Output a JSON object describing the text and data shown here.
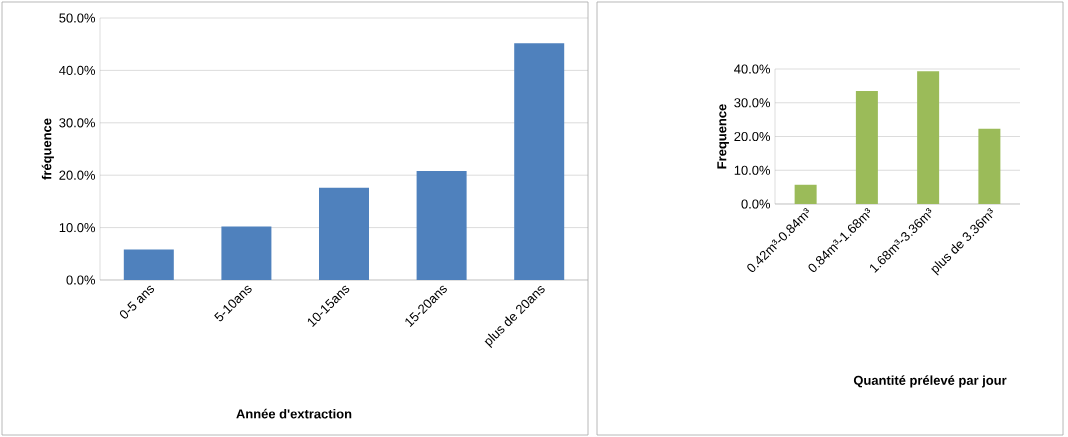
{
  "chart_data": [
    {
      "type": "bar",
      "xlabel": "Année d'extraction",
      "ylabel": "fréquence",
      "categories": [
        "0-5 ans",
        "5-10ans",
        "10-15ans",
        "15-20ans",
        "plus de 20ans"
      ],
      "values": [
        5.8,
        10.2,
        17.6,
        20.8,
        45.2
      ],
      "color": "#4f81bd",
      "ylim": [
        0,
        50
      ],
      "yticks": [
        {
          "value": 0,
          "label": "0.0%"
        },
        {
          "value": 10,
          "label": "10.0%"
        },
        {
          "value": 20,
          "label": "20.0%"
        },
        {
          "value": 30,
          "label": "30.0%"
        },
        {
          "value": 40,
          "label": "40.0%"
        },
        {
          "value": 50,
          "label": "50.0%"
        }
      ],
      "grid": "y"
    },
    {
      "type": "bar",
      "xlabel": "Quantité prélevé par jour",
      "ylabel": "Frequence",
      "categories": [
        "0.42m³-0.84m³",
        "0.84m³-1.68m³",
        "1.68m³-3.36m³",
        "plus de 3.36m³"
      ],
      "values": [
        5.7,
        33.5,
        39.3,
        22.3
      ],
      "color": "#9bbb59",
      "ylim": [
        0,
        40
      ],
      "yticks": [
        {
          "value": 0,
          "label": "0.0%"
        },
        {
          "value": 10,
          "label": "10.0%"
        },
        {
          "value": 20,
          "label": "20.0%"
        },
        {
          "value": 30,
          "label": "30.0%"
        },
        {
          "value": 40,
          "label": "40.0%"
        }
      ],
      "grid": "y"
    }
  ]
}
